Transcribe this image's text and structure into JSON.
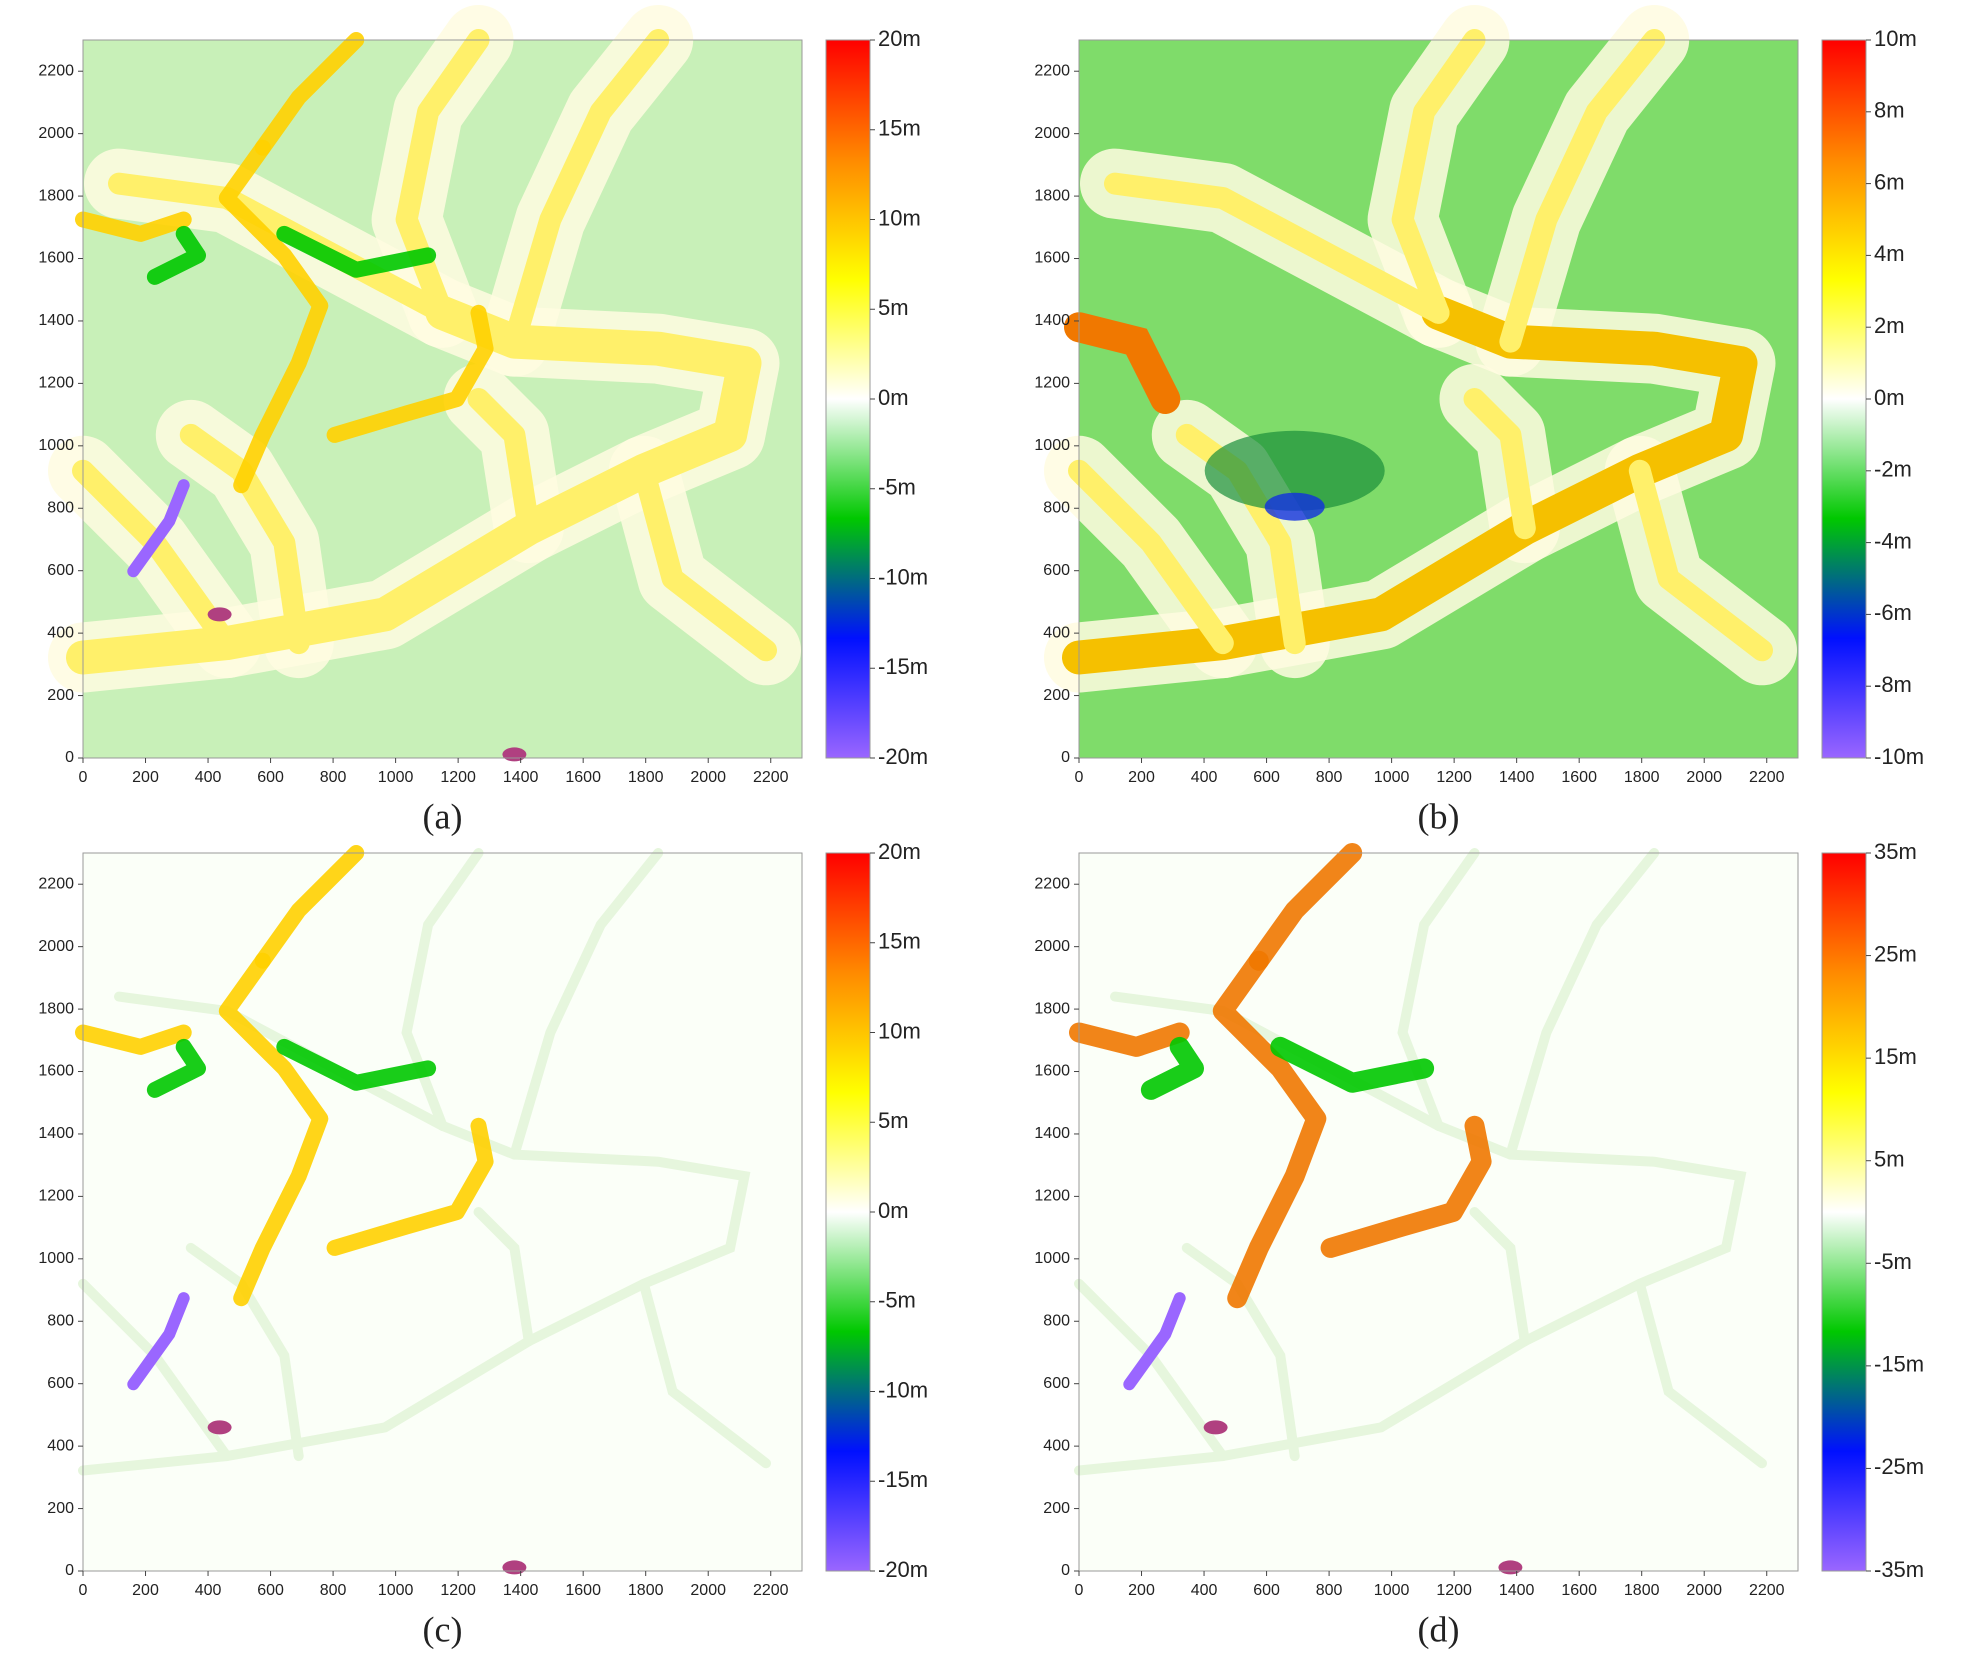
{
  "chart_data": [
    {
      "type": "heatmap",
      "label": "(a)",
      "xlim": [
        0,
        2300
      ],
      "ylim": [
        0,
        2300
      ],
      "xticks": [
        0,
        200,
        400,
        600,
        800,
        1000,
        1200,
        1400,
        1600,
        1800,
        2000,
        2200
      ],
      "yticks": [
        0,
        200,
        400,
        600,
        800,
        1000,
        1200,
        1400,
        1600,
        1800,
        2000,
        2200
      ],
      "colorbar": {
        "lim": [
          -20,
          20
        ],
        "colormap": [
          "#9a66ff",
          "#0010ff",
          "#00c800",
          "#ffffff",
          "#ffff00",
          "#ff8a00",
          "#ff0000"
        ],
        "ticks": [
          {
            "value": 20,
            "label": "20m"
          },
          {
            "value": 15,
            "label": "15m"
          },
          {
            "value": 10,
            "label": "10m"
          },
          {
            "value": 5,
            "label": "5m"
          },
          {
            "value": 0,
            "label": "0m"
          },
          {
            "value": -5,
            "label": "-5m"
          },
          {
            "value": -10,
            "label": "-10m"
          },
          {
            "value": -15,
            "label": "-15m"
          },
          {
            "value": -20,
            "label": "-20m"
          }
        ]
      }
    },
    {
      "type": "heatmap",
      "label": "(b)",
      "xlim": [
        0,
        2300
      ],
      "ylim": [
        0,
        2300
      ],
      "xticks": [
        0,
        200,
        400,
        600,
        800,
        1000,
        1200,
        1400,
        1600,
        1800,
        2000,
        2200
      ],
      "yticks": [
        0,
        200,
        400,
        600,
        800,
        1000,
        1200,
        1400,
        1600,
        1800,
        2000,
        2200
      ],
      "colorbar": {
        "lim": [
          -10,
          10
        ],
        "colormap": [
          "#9a66ff",
          "#0010ff",
          "#00c800",
          "#ffffff",
          "#ffff00",
          "#ff8a00",
          "#ff0000"
        ],
        "ticks": [
          {
            "value": 10,
            "label": "10m"
          },
          {
            "value": 8,
            "label": "8m"
          },
          {
            "value": 6,
            "label": "6m"
          },
          {
            "value": 4,
            "label": "4m"
          },
          {
            "value": 2,
            "label": "2m"
          },
          {
            "value": 0,
            "label": "0m"
          },
          {
            "value": -2,
            "label": "-2m"
          },
          {
            "value": -4,
            "label": "-4m"
          },
          {
            "value": -6,
            "label": "-6m"
          },
          {
            "value": -8,
            "label": "-8m"
          },
          {
            "value": -10,
            "label": "-10m"
          }
        ]
      }
    },
    {
      "type": "heatmap",
      "label": "(c)",
      "xlim": [
        0,
        2300
      ],
      "ylim": [
        0,
        2300
      ],
      "xticks": [
        0,
        200,
        400,
        600,
        800,
        1000,
        1200,
        1400,
        1600,
        1800,
        2000,
        2200
      ],
      "yticks": [
        0,
        200,
        400,
        600,
        800,
        1000,
        1200,
        1400,
        1600,
        1800,
        2000,
        2200
      ],
      "colorbar": {
        "lim": [
          -20,
          20
        ],
        "colormap": [
          "#9a66ff",
          "#0010ff",
          "#00c800",
          "#ffffff",
          "#ffff00",
          "#ff8a00",
          "#ff0000"
        ],
        "ticks": [
          {
            "value": 20,
            "label": "20m"
          },
          {
            "value": 15,
            "label": "15m"
          },
          {
            "value": 10,
            "label": "10m"
          },
          {
            "value": 5,
            "label": "5m"
          },
          {
            "value": 0,
            "label": "0m"
          },
          {
            "value": -5,
            "label": "-5m"
          },
          {
            "value": -10,
            "label": "-10m"
          },
          {
            "value": -15,
            "label": "-15m"
          },
          {
            "value": -20,
            "label": "-20m"
          }
        ]
      }
    },
    {
      "type": "heatmap",
      "label": "(d)",
      "xlim": [
        0,
        2300
      ],
      "ylim": [
        0,
        2300
      ],
      "xticks": [
        0,
        200,
        400,
        600,
        800,
        1000,
        1200,
        1400,
        1600,
        1800,
        2000,
        2200
      ],
      "yticks": [
        0,
        200,
        400,
        600,
        800,
        1000,
        1200,
        1400,
        1600,
        1800,
        2000,
        2200
      ],
      "colorbar": {
        "lim": [
          -35,
          35
        ],
        "colormap": [
          "#9a66ff",
          "#0010ff",
          "#00c800",
          "#ffffff",
          "#ffff00",
          "#ff8a00",
          "#ff0000"
        ],
        "ticks": [
          {
            "value": 35,
            "label": "35m"
          },
          {
            "value": 25,
            "label": "25m"
          },
          {
            "value": 15,
            "label": "15m"
          },
          {
            "value": 5,
            "label": "5m"
          },
          {
            "value": -5,
            "label": "-5m"
          },
          {
            "value": -15,
            "label": "-15m"
          },
          {
            "value": -25,
            "label": "-25m"
          },
          {
            "value": -35,
            "label": "-35m"
          }
        ]
      }
    }
  ]
}
